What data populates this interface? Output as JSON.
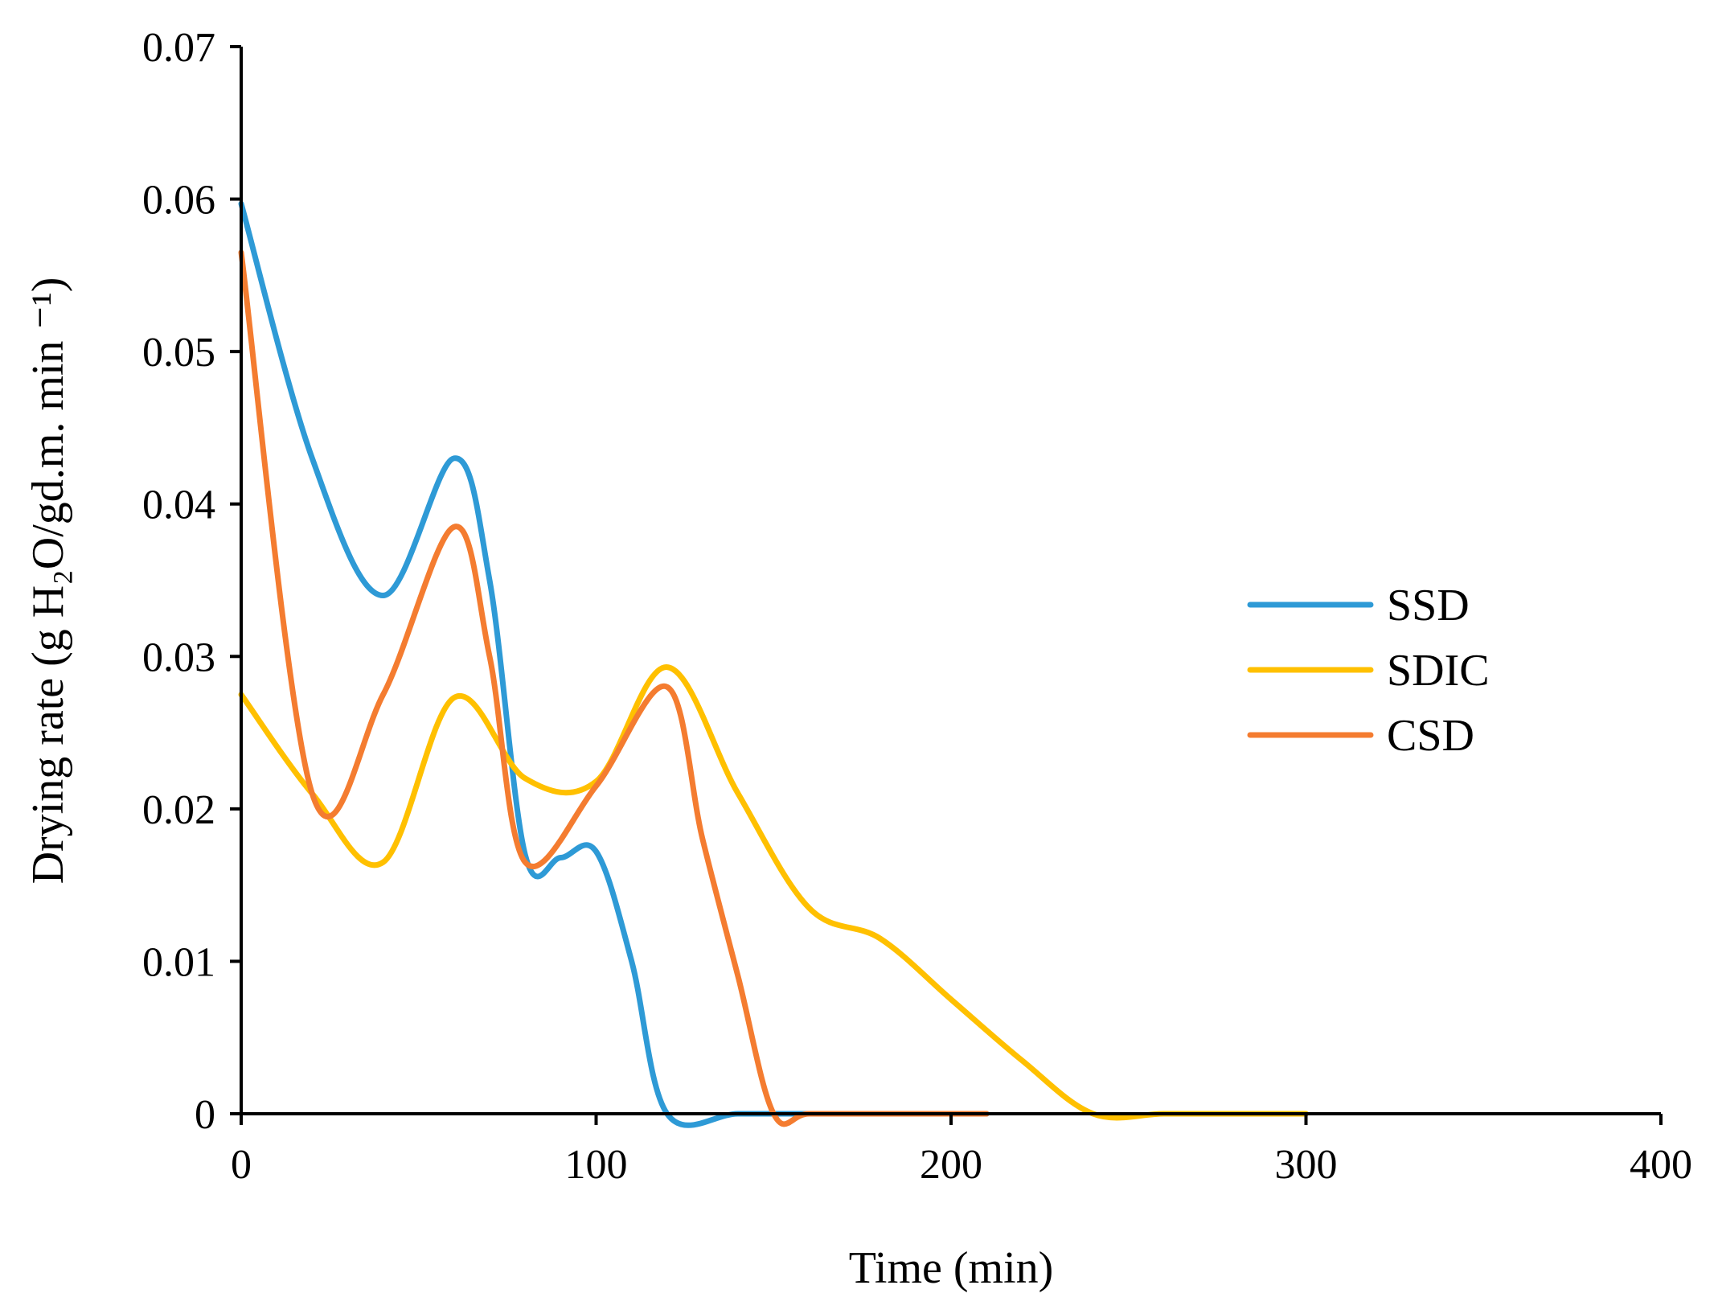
{
  "chart_data": {
    "type": "line",
    "title": "",
    "xlabel": "Time (min)",
    "ylabel": "Drying rate (g H₂O/gd.m. min ⁻¹)",
    "xlim": [
      0,
      400
    ],
    "ylim": [
      0,
      0.07
    ],
    "x_ticks": [
      0,
      100,
      200,
      300,
      400
    ],
    "x_tick_labels": [
      "0",
      "100",
      "200",
      "300",
      "400"
    ],
    "y_ticks": [
      0,
      0.01,
      0.02,
      0.03,
      0.04,
      0.05,
      0.06,
      0.07
    ],
    "y_tick_labels": [
      "0",
      "0.01",
      "0.02",
      "0.03",
      "0.04",
      "0.05",
      "0.06",
      "0.07"
    ],
    "grid": false,
    "legend_position": "right",
    "series": [
      {
        "name": "SSD",
        "color": "#2E9AD6",
        "x": [
          0,
          20,
          40,
          60,
          70,
          80,
          90,
          100,
          110,
          120,
          140,
          160,
          180,
          200,
          210
        ],
        "y": [
          0.0597,
          0.043,
          0.034,
          0.043,
          0.035,
          0.017,
          0.0168,
          0.0172,
          0.01,
          0.0,
          0.0,
          0.0,
          0.0,
          0.0,
          0.0
        ]
      },
      {
        "name": "SDIC",
        "color": "#FFC000",
        "x": [
          0,
          20,
          40,
          60,
          80,
          100,
          120,
          140,
          160,
          180,
          200,
          220,
          240,
          260,
          280,
          300
        ],
        "y": [
          0.0275,
          0.021,
          0.0165,
          0.0273,
          0.022,
          0.0218,
          0.0293,
          0.021,
          0.0135,
          0.0115,
          0.0075,
          0.0035,
          0.0,
          0.0,
          0.0,
          0.0
        ]
      },
      {
        "name": "CSD",
        "color": "#F47C30",
        "x": [
          0,
          20,
          40,
          60,
          70,
          80,
          100,
          120,
          130,
          140,
          150,
          160,
          180,
          200,
          210
        ],
        "y": [
          0.0565,
          0.021,
          0.0275,
          0.0385,
          0.03,
          0.0165,
          0.0215,
          0.028,
          0.018,
          0.009,
          0.0,
          0.0,
          0.0,
          0.0,
          0.0
        ]
      }
    ]
  }
}
